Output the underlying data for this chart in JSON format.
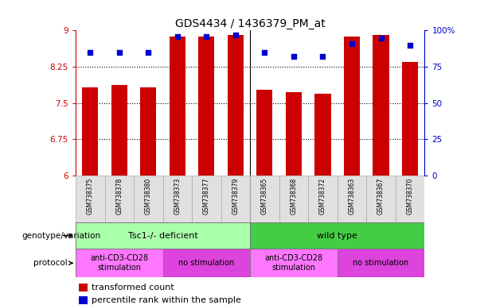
{
  "title": "GDS4434 / 1436379_PM_at",
  "samples": [
    "GSM738375",
    "GSM738378",
    "GSM738380",
    "GSM738373",
    "GSM738377",
    "GSM738379",
    "GSM738365",
    "GSM738368",
    "GSM738372",
    "GSM738363",
    "GSM738367",
    "GSM738370"
  ],
  "bar_values": [
    7.82,
    7.87,
    7.83,
    8.88,
    8.87,
    8.9,
    7.78,
    7.73,
    7.69,
    8.87,
    8.9,
    8.35
  ],
  "percentile_values": [
    85,
    85,
    85,
    96,
    96,
    97,
    85,
    82,
    82,
    91,
    95,
    90
  ],
  "ymin": 6,
  "ymax": 9,
  "yticks_left": [
    6,
    6.75,
    7.5,
    8.25,
    9
  ],
  "yticks_right": [
    0,
    25,
    50,
    75,
    100
  ],
  "bar_color": "#cc0000",
  "dot_color": "#0000cc",
  "bar_width": 0.55,
  "bg_color": "#ffffff",
  "cell_bg": "#e0e0e0",
  "cell_border": "#aaaaaa",
  "genotype_groups": [
    {
      "label": "Tsc1-/- deficient",
      "start": 0,
      "end": 6,
      "color": "#aaffaa"
    },
    {
      "label": "wild type",
      "start": 6,
      "end": 12,
      "color": "#44cc44"
    }
  ],
  "protocol_groups": [
    {
      "label": "anti-CD3-CD28\nstimulation",
      "start": 0,
      "end": 3,
      "color": "#ff77ff"
    },
    {
      "label": "no stimulation",
      "start": 3,
      "end": 6,
      "color": "#dd44dd"
    },
    {
      "label": "anti-CD3-CD28\nstimulation",
      "start": 6,
      "end": 9,
      "color": "#ff77ff"
    },
    {
      "label": "no stimulation",
      "start": 9,
      "end": 12,
      "color": "#dd44dd"
    }
  ],
  "legend_red": "transformed count",
  "legend_blue": "percentile rank within the sample",
  "xlabel_genotype": "genotype/variation",
  "xlabel_protocol": "protocol",
  "tick_color_left": "#cc0000",
  "tick_color_right": "#0000cc"
}
